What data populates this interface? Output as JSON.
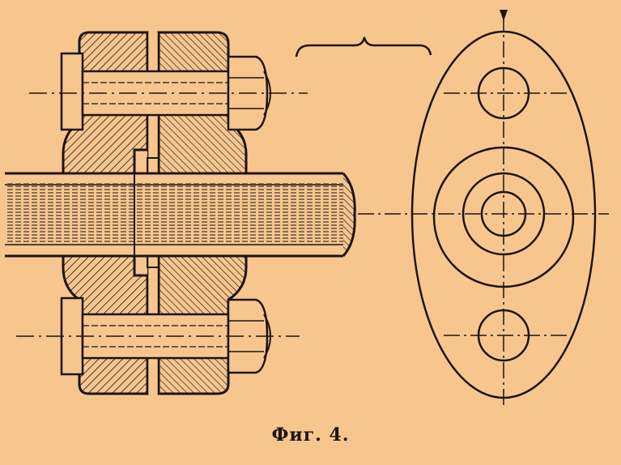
{
  "caption": "Фиг. 4.",
  "colors": {
    "paper": "#f7c68f",
    "ink": "#1d1410"
  },
  "drawing_subject": "flange-coupling-section-and-end-view"
}
